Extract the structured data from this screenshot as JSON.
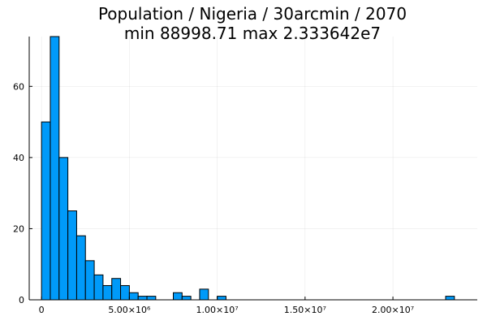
{
  "chart_data": {
    "type": "bar",
    "title_lines": [
      "Population / Nigeria / 30arcmin / 2070",
      "min 88998.71  max 2.333642e7"
    ],
    "xlabel": "",
    "ylabel": "",
    "bin_width": 500000,
    "bin_start": 0,
    "counts": [
      50,
      74,
      40,
      25,
      18,
      11,
      7,
      4,
      6,
      4,
      2,
      1,
      1,
      0,
      0,
      2,
      1,
      0,
      3,
      0,
      1,
      0,
      0,
      0,
      0,
      0,
      0,
      0,
      0,
      0,
      0,
      0,
      0,
      0,
      0,
      0,
      0,
      0,
      0,
      0,
      0,
      0,
      0,
      0,
      0,
      0,
      1
    ],
    "xlim": [
      -700000,
      24800000
    ],
    "ylim": [
      0,
      74
    ],
    "x_ticks": [
      {
        "value": 0,
        "label": "0"
      },
      {
        "value": 5000000,
        "label": "5.00×10⁶"
      },
      {
        "value": 10000000,
        "label": "1.00×10⁷"
      },
      {
        "value": 15000000,
        "label": "1.50×10⁷"
      },
      {
        "value": 20000000,
        "label": "2.00×10⁷"
      }
    ],
    "y_ticks": [
      {
        "value": 0,
        "label": "0"
      },
      {
        "value": 20,
        "label": "20"
      },
      {
        "value": 40,
        "label": "40"
      },
      {
        "value": 60,
        "label": "60"
      }
    ],
    "bar_color": "#009af9",
    "grid": true,
    "legend": "none"
  }
}
